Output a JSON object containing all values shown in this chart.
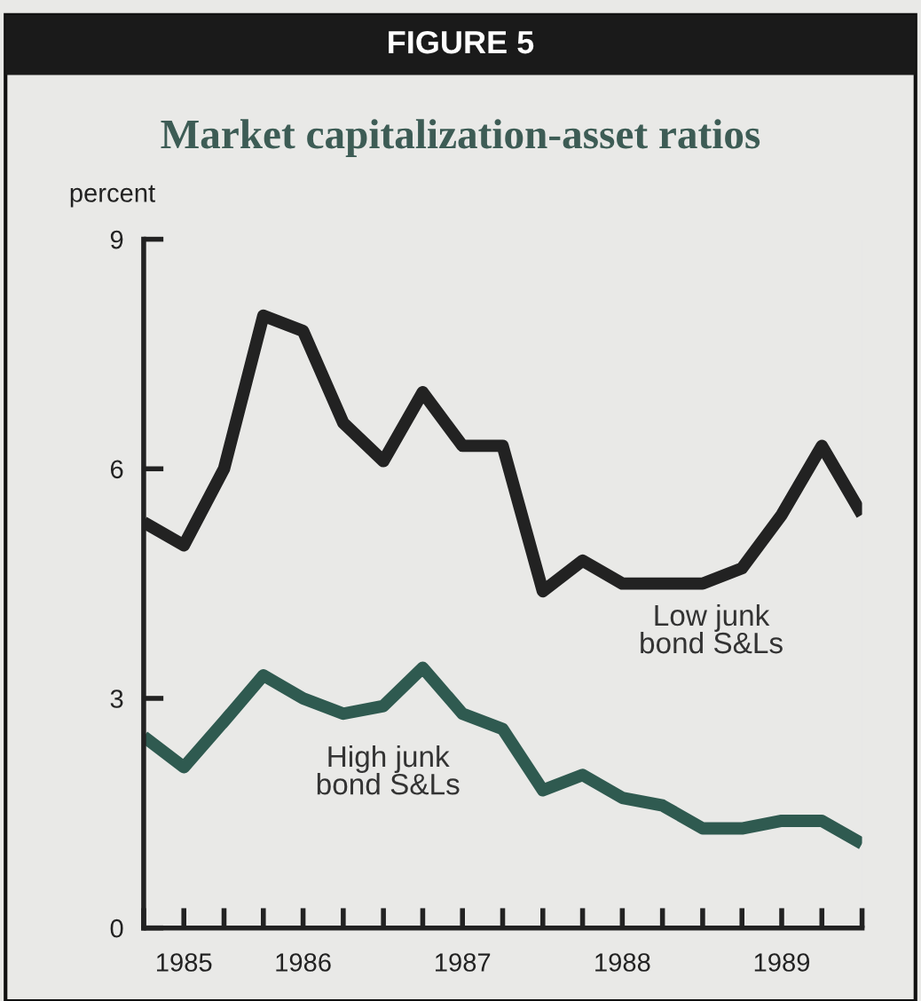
{
  "chart_data": {
    "type": "line",
    "title": "FIGURE 5",
    "subtitle": "Market capitalization-asset ratios",
    "ylabel": "percent",
    "x": [
      "1985-07",
      "1985-10",
      "1986-01",
      "1986-04",
      "1986-07",
      "1986-10",
      "1987-01",
      "1987-04",
      "1987-07",
      "1987-10",
      "1988-01",
      "1988-04",
      "1988-07",
      "1988-10",
      "1989-01",
      "1989-04",
      "1989-07",
      "1989-10",
      "1990-01"
    ],
    "series": [
      {
        "name": "Low junk\nbond S&Ls",
        "color": "#222222",
        "values": [
          5.3,
          5.0,
          6.0,
          8.0,
          7.8,
          6.6,
          6.1,
          7.0,
          6.3,
          6.3,
          4.4,
          4.8,
          4.5,
          4.5,
          4.5,
          4.7,
          5.4,
          6.3,
          5.4
        ]
      },
      {
        "name": "High junk\nbond S&Ls",
        "color": "#2f5a50",
        "values": [
          2.5,
          2.1,
          2.7,
          3.3,
          3.0,
          2.8,
          2.9,
          3.4,
          2.8,
          2.6,
          1.8,
          2.0,
          1.7,
          1.6,
          1.3,
          1.3,
          1.4,
          1.4,
          1.1
        ]
      }
    ],
    "xlim": [
      "1985-07",
      "1990-01"
    ],
    "xticks": [
      {
        "value": "1985-07",
        "label": null
      },
      {
        "value": "1985-10",
        "label": "1985"
      },
      {
        "value": "1986-01",
        "label": null
      },
      {
        "value": "1986-04",
        "label": null
      },
      {
        "value": "1986-07",
        "label": "1986"
      },
      {
        "value": "1986-10",
        "label": null
      },
      {
        "value": "1987-01",
        "label": null
      },
      {
        "value": "1987-04",
        "label": null
      },
      {
        "value": "1987-07",
        "label": "1987"
      },
      {
        "value": "1987-10",
        "label": null
      },
      {
        "value": "1988-01",
        "label": null
      },
      {
        "value": "1988-04",
        "label": null
      },
      {
        "value": "1988-07",
        "label": "1988"
      },
      {
        "value": "1988-10",
        "label": null
      },
      {
        "value": "1989-01",
        "label": null
      },
      {
        "value": "1989-04",
        "label": null
      },
      {
        "value": "1989-07",
        "label": "1989"
      },
      {
        "value": "1989-10",
        "label": null
      },
      {
        "value": "1990-01",
        "label": null
      }
    ],
    "ylim": [
      0,
      9
    ],
    "yticks": [
      0,
      3,
      6,
      9
    ],
    "grid": false,
    "legend": false,
    "marker": "none",
    "line_style": "solid"
  }
}
